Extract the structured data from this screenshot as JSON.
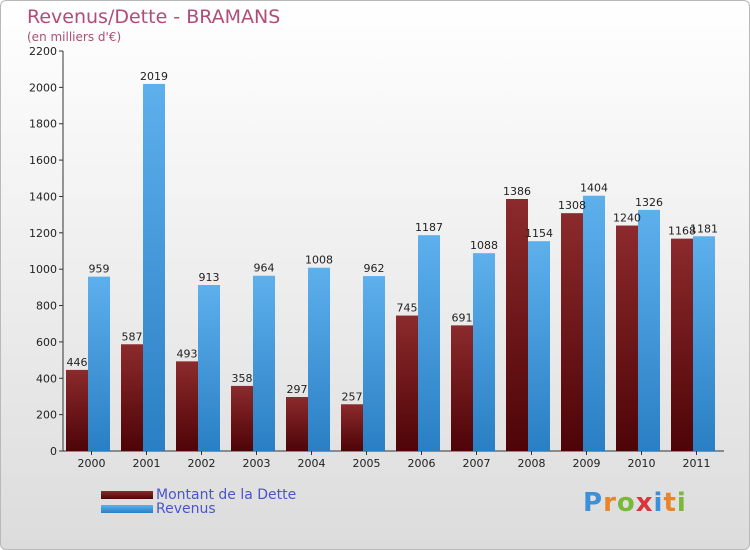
{
  "title": "Revenus/Dette - BRAMANS",
  "subtitle": "(en milliers d'€)",
  "colors": {
    "dette": "#7a1518",
    "revenus": "#4aa3e2",
    "title": "#b04d77",
    "legend_text": "#4a55c9"
  },
  "logo": {
    "text": "Proxiti",
    "letters": [
      "P",
      "r",
      "o",
      "x",
      "i",
      "t",
      "i"
    ],
    "letter_colors": [
      "#3d8fd6",
      "#e8842a",
      "#7bb83a",
      "#d9353a",
      "#3d8fd6",
      "#e8842a",
      "#7bb83a"
    ]
  },
  "chart_data": {
    "type": "bar",
    "categories": [
      "2000",
      "2001",
      "2002",
      "2003",
      "2004",
      "2005",
      "2006",
      "2007",
      "2008",
      "2009",
      "2010",
      "2011"
    ],
    "series": [
      {
        "name": "Montant de la Dette",
        "values": [
          446,
          587,
          493,
          358,
          297,
          257,
          745,
          691,
          1386,
          1308,
          1240,
          1168
        ],
        "labels": [
          "446",
          "587",
          "493",
          "358",
          "297",
          "257",
          "745",
          "691",
          "1386",
          "1308",
          "1240",
          "1168"
        ]
      },
      {
        "name": "Revenus",
        "values": [
          959,
          2019,
          913,
          964,
          1008,
          962,
          1187,
          1088,
          1154,
          1404,
          1326,
          1181
        ],
        "labels": [
          "959",
          "2019",
          "913",
          "964",
          "1008",
          "962",
          "1187",
          "1088",
          "1154",
          "1404",
          "1326",
          "1181"
        ]
      }
    ],
    "ylim": [
      0,
      2200
    ],
    "yticks": [
      "0",
      "200",
      "400",
      "600",
      "800",
      "1000",
      "1200",
      "1400",
      "1600",
      "1800",
      "2000",
      "2200"
    ],
    "grid": false,
    "legend_position": "bottom-left"
  }
}
